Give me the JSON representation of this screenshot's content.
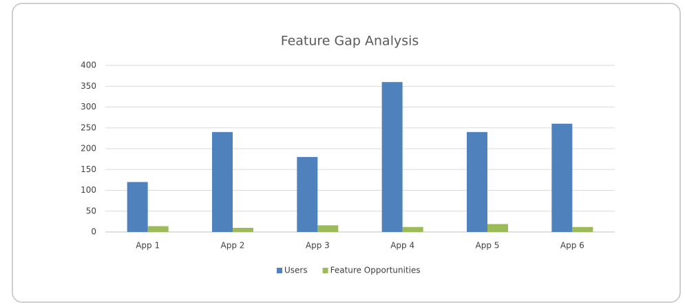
{
  "chart_data": {
    "type": "bar",
    "title": "Feature Gap Analysis",
    "categories": [
      "App 1",
      "App 2",
      "App 3",
      "App 4",
      "App 5",
      "App 6"
    ],
    "series": [
      {
        "name": "Users",
        "color": "#4f81bd",
        "values": [
          120,
          240,
          180,
          360,
          240,
          260
        ]
      },
      {
        "name": "Feature Opportunities",
        "color": "#9bbb59",
        "values": [
          14,
          10,
          16,
          12,
          19,
          12
        ]
      }
    ],
    "ylim": [
      0,
      400
    ],
    "yticks": [
      0,
      50,
      100,
      150,
      200,
      250,
      300,
      350,
      400
    ],
    "grid": true,
    "legend": "bottom"
  }
}
